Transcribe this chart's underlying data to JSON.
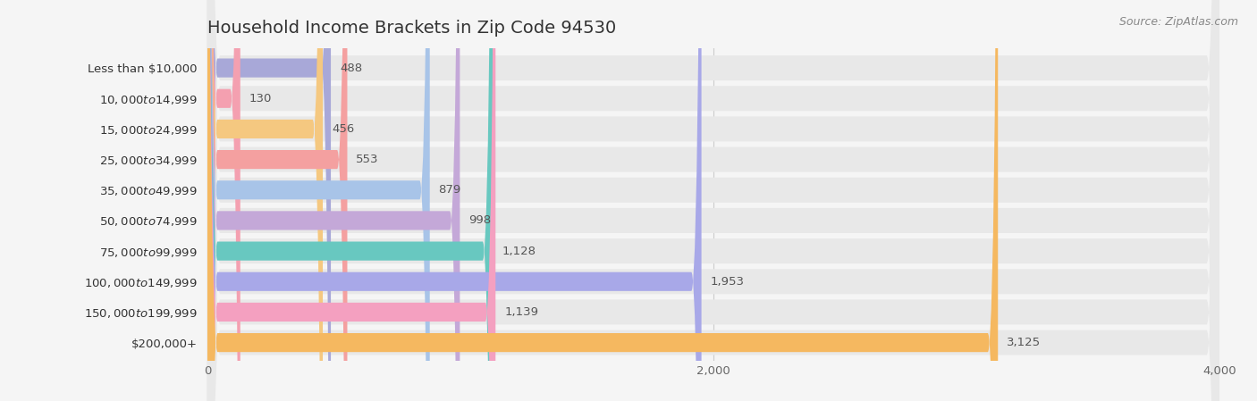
{
  "title": "Household Income Brackets in Zip Code 94530",
  "source": "Source: ZipAtlas.com",
  "categories": [
    "Less than $10,000",
    "$10,000 to $14,999",
    "$15,000 to $24,999",
    "$25,000 to $34,999",
    "$35,000 to $49,999",
    "$50,000 to $74,999",
    "$75,000 to $99,999",
    "$100,000 to $149,999",
    "$150,000 to $199,999",
    "$200,000+"
  ],
  "values": [
    488,
    130,
    456,
    553,
    879,
    998,
    1128,
    1953,
    1139,
    3125
  ],
  "bar_colors": [
    "#a8a8d8",
    "#f4a0b0",
    "#f5c880",
    "#f4a0a0",
    "#a8c4e8",
    "#c4a8d8",
    "#68c8c0",
    "#a8a8e8",
    "#f4a0c0",
    "#f5b860"
  ],
  "bar_bg_color": "#e8e8e8",
  "background_color": "#f5f5f5",
  "row_alt_color": "#f0f0f0",
  "xlim": [
    0,
    4000
  ],
  "xticks": [
    0,
    2000,
    4000
  ],
  "title_fontsize": 14,
  "label_fontsize": 9.5,
  "value_fontsize": 9.5,
  "source_fontsize": 9
}
